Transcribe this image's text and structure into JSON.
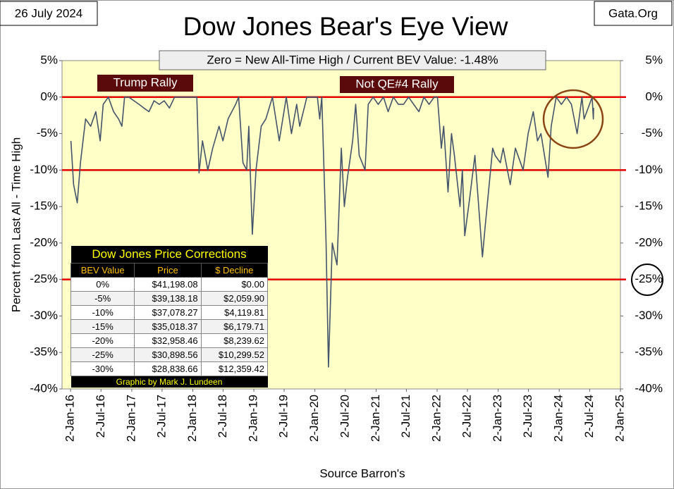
{
  "chart_data": {
    "type": "line",
    "title": "Dow Jones Bear's Eye View",
    "date": "26 July 2024",
    "source_site": "Gata.Org",
    "banner": "Zero = New All-Time High / Current BEV Value:  -1.48%",
    "annotations": [
      "Trump Rally",
      "Not QE#4 Rally"
    ],
    "y_label": "Percent  from  Last  All - Time  High",
    "x_label": "Source Barron's",
    "color": "#44546a",
    "x": [
      "2016-01-04",
      "2016-01-20",
      "2016-02-11",
      "2016-03-01",
      "2016-04-01",
      "2016-05-01",
      "2016-06-01",
      "2016-06-27",
      "2016-07-15",
      "2016-08-15",
      "2016-09-15",
      "2016-10-15",
      "2016-11-04",
      "2016-11-20",
      "2016-12-15",
      "2017-01-15",
      "2017-02-15",
      "2017-03-15",
      "2017-04-15",
      "2017-05-15",
      "2017-06-15",
      "2017-07-15",
      "2017-08-15",
      "2017-09-15",
      "2017-10-15",
      "2017-11-15",
      "2017-12-15",
      "2018-01-26",
      "2018-02-08",
      "2018-03-01",
      "2018-04-02",
      "2018-05-01",
      "2018-06-08",
      "2018-07-01",
      "2018-08-01",
      "2018-09-15",
      "2018-10-03",
      "2018-10-29",
      "2018-11-20",
      "2018-12-03",
      "2018-12-24",
      "2019-01-15",
      "2019-02-15",
      "2019-03-15",
      "2019-04-23",
      "2019-06-03",
      "2019-07-15",
      "2019-08-15",
      "2019-09-15",
      "2019-10-03",
      "2019-11-15",
      "2019-12-15",
      "2020-01-17",
      "2020-01-31",
      "2020-02-12",
      "2020-02-28",
      "2020-03-09",
      "2020-03-23",
      "2020-04-15",
      "2020-05-13",
      "2020-06-08",
      "2020-06-26",
      "2020-07-15",
      "2020-08-15",
      "2020-09-02",
      "2020-09-23",
      "2020-10-28",
      "2020-11-16",
      "2020-12-15",
      "2021-01-15",
      "2021-02-15",
      "2021-03-15",
      "2021-04-15",
      "2021-05-15",
      "2021-06-15",
      "2021-07-15",
      "2021-08-15",
      "2021-09-15",
      "2021-10-15",
      "2021-11-15",
      "2021-12-15",
      "2022-01-04",
      "2022-01-27",
      "2022-02-10",
      "2022-03-08",
      "2022-03-29",
      "2022-04-15",
      "2022-05-19",
      "2022-06-02",
      "2022-06-16",
      "2022-07-15",
      "2022-08-16",
      "2022-09-30",
      "2022-10-15",
      "2022-11-30",
      "2022-12-15",
      "2023-01-15",
      "2023-02-01",
      "2023-03-15",
      "2023-04-15",
      "2023-05-31",
      "2023-06-30",
      "2023-07-31",
      "2023-08-25",
      "2023-09-15",
      "2023-10-27",
      "2023-11-15",
      "2023-12-15",
      "2024-01-15",
      "2024-02-15",
      "2024-03-15",
      "2024-04-18",
      "2024-05-17",
      "2024-05-30",
      "2024-06-15",
      "2024-07-17",
      "2024-07-24",
      "2024-07-26"
    ],
    "values": [
      -6,
      -12,
      -14.5,
      -9,
      -3,
      -4,
      -2,
      -6,
      -1,
      0,
      -2,
      -3,
      -4,
      0,
      0,
      -0.5,
      -1,
      -1.5,
      -2,
      -0.5,
      -1,
      -0.5,
      -1.5,
      0,
      0,
      0,
      0,
      0,
      -10.4,
      -6,
      -10,
      -7,
      -4,
      -6,
      -3,
      -1,
      0,
      -9,
      -10,
      -4,
      -18.8,
      -10,
      -4,
      -3,
      0,
      -6,
      0,
      -5,
      -1,
      -4,
      0,
      0,
      0,
      -3,
      0,
      -12,
      -20,
      -37,
      -20,
      -23,
      -7,
      -15,
      -11,
      -6,
      -1,
      -8,
      -10,
      -1,
      0,
      -1,
      0,
      -2,
      0,
      -1,
      -1,
      0,
      -1,
      -2,
      0,
      -1,
      0,
      0,
      -7,
      -4,
      -13,
      -5,
      -8,
      -15,
      -10,
      -19,
      -14,
      -8,
      -21.9,
      -18,
      -7,
      -8,
      -9,
      -7,
      -12,
      -7,
      -10,
      -5,
      -2,
      -6,
      -5,
      -11,
      -4,
      0,
      -1,
      0,
      -1,
      -5,
      0,
      -3,
      -2,
      0,
      -3,
      -1.48
    ],
    "xlim": [
      "2015-11-12",
      "2025-01-02"
    ],
    "xticks": [
      {
        "value": "2016-01-02",
        "label": "2-Jan-16"
      },
      {
        "value": "2016-07-02",
        "label": "2-Jul-16"
      },
      {
        "value": "2017-01-02",
        "label": "2-Jan-17"
      },
      {
        "value": "2017-07-02",
        "label": "2-Jul-17"
      },
      {
        "value": "2018-01-02",
        "label": "2-Jan-18"
      },
      {
        "value": "2018-07-02",
        "label": "2-Jul-18"
      },
      {
        "value": "2019-01-02",
        "label": "2-Jan-19"
      },
      {
        "value": "2019-07-02",
        "label": "2-Jul-19"
      },
      {
        "value": "2020-01-02",
        "label": "2-Jan-20"
      },
      {
        "value": "2020-07-02",
        "label": "2-Jul-20"
      },
      {
        "value": "2021-01-02",
        "label": "2-Jan-21"
      },
      {
        "value": "2021-07-02",
        "label": "2-Jul-21"
      },
      {
        "value": "2022-01-02",
        "label": "2-Jan-22"
      },
      {
        "value": "2022-07-02",
        "label": "2-Jul-22"
      },
      {
        "value": "2023-01-02",
        "label": "2-Jan-23"
      },
      {
        "value": "2023-07-02",
        "label": "2-Jul-23"
      },
      {
        "value": "2024-01-02",
        "label": "2-Jan-24"
      },
      {
        "value": "2024-07-02",
        "label": "2-Jul-24"
      },
      {
        "value": "2025-01-02",
        "label": "2-Jan-25"
      }
    ],
    "ylim": [
      -40,
      5
    ],
    "yticks": [
      {
        "value": 5,
        "label": "5%"
      },
      {
        "value": 0,
        "label": "0%"
      },
      {
        "value": -5,
        "label": "-5%"
      },
      {
        "value": -10,
        "label": "-10%"
      },
      {
        "value": -15,
        "label": "-15%"
      },
      {
        "value": -20,
        "label": "-20%"
      },
      {
        "value": -25,
        "label": "-25%"
      },
      {
        "value": -30,
        "label": "-30%"
      },
      {
        "value": -35,
        "label": "-35%"
      },
      {
        "value": -40,
        "label": "-40%"
      }
    ],
    "reference_lines": {
      "values": [
        0,
        -10,
        -25
      ],
      "color": "#e00000"
    },
    "table": {
      "title": "Dow Jones Price Corrections",
      "header": [
        "BEV Value",
        "Price",
        "$ Decline"
      ],
      "rows": [
        [
          "0%",
          "$41,198.08",
          "$0.00"
        ],
        [
          "-5%",
          "$39,138.18",
          "$2,059.90"
        ],
        [
          "-10%",
          "$37,078.27",
          "$4,119.81"
        ],
        [
          "-15%",
          "$35,018.37",
          "$6,179.71"
        ],
        [
          "-20%",
          "$32,958.46",
          "$8,239.62"
        ],
        [
          "-25%",
          "$30,898.56",
          "$10,299.52"
        ],
        [
          "-30%",
          "$28,838.66",
          "$12,359.42"
        ]
      ],
      "footer": "Graphic by Mark J. Lundeen"
    }
  }
}
